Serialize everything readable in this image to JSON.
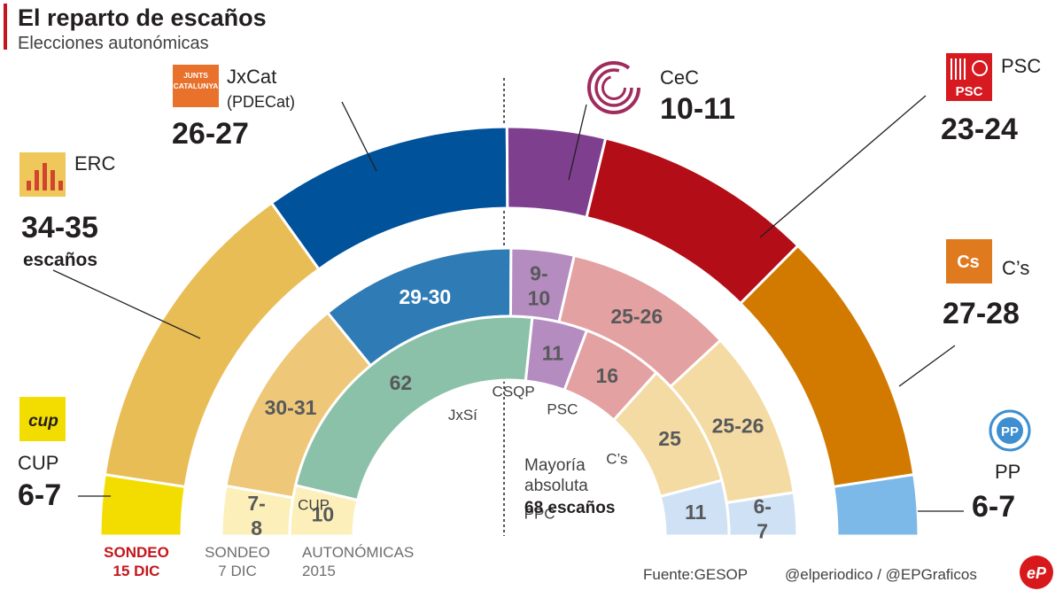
{
  "header": {
    "title": "El reparto de escaños",
    "subtitle": "Elecciones autonómicas",
    "accent_color": "#c4161c"
  },
  "chart_data": {
    "type": "semicircle",
    "title": "El reparto de escaños",
    "subtitle": "Elecciones autonómicas",
    "total_seats": 135,
    "majority_label": [
      "Mayoría",
      "absoluta",
      "68 escaños"
    ],
    "rings": [
      {
        "name": "SONDEO 15 DIC",
        "label_lines": [
          "SONDEO",
          "15 DIC"
        ],
        "label_color": "#c4161c",
        "segments": [
          {
            "party": "CUP",
            "label": "6-7",
            "value": 6.5,
            "color": "#f3dd00"
          },
          {
            "party": "ERC",
            "label": "34-35",
            "value": 34.5,
            "color": "#e9bd56"
          },
          {
            "party": "JxCat",
            "label": "26-27",
            "value": 26.5,
            "color": "#00529b"
          },
          {
            "party": "CeC",
            "label": "10-11",
            "value": 10.5,
            "color": "#7f3f8f"
          },
          {
            "party": "PSC",
            "label": "23-24",
            "value": 23.5,
            "color": "#b30d17"
          },
          {
            "party": "C's",
            "label": "27-28",
            "value": 27.5,
            "color": "#d27a00"
          },
          {
            "party": "PP",
            "label": "6-7",
            "value": 6.5,
            "color": "#7cb9e8"
          }
        ]
      },
      {
        "name": "SONDEO 7 DIC",
        "label_lines": [
          "SONDEO",
          "7 DIC"
        ],
        "label_color": "#6d6e71",
        "segments": [
          {
            "party": "CUP",
            "label": "7-8",
            "value": 7.5,
            "color": "#fcefb9",
            "text_color": "#58595b"
          },
          {
            "party": "ERC",
            "label": "30-31",
            "value": 30.5,
            "color": "#eec878",
            "text_color": "#58595b"
          },
          {
            "party": "JxCat",
            "label": "29-30",
            "value": 29.5,
            "color": "#2f7bb6",
            "text_color": "#ffffff"
          },
          {
            "party": "CeC",
            "label": "9-10",
            "value": 9.5,
            "color": "#b48cc0",
            "text_color": "#58595b"
          },
          {
            "party": "PSC",
            "label": "25-26",
            "value": 25.5,
            "color": "#e4a1a2",
            "text_color": "#58595b"
          },
          {
            "party": "C's",
            "label": "25-26",
            "value": 25.5,
            "color": "#f4dba4",
            "text_color": "#58595b"
          },
          {
            "party": "PP",
            "label": "6-7",
            "value": 6.5,
            "color": "#cfe2f5",
            "text_color": "#58595b"
          }
        ]
      },
      {
        "name": "AUTONÓMICAS 2015",
        "label_lines": [
          "AUTONÓMICAS",
          "2015"
        ],
        "label_color": "#6d6e71",
        "segments": [
          {
            "party": "CUP",
            "label": "10",
            "name_label": "CUP",
            "value": 10,
            "color": "#fcefb9",
            "text_color": "#58595b"
          },
          {
            "party": "JxSí",
            "label": "62",
            "name_label": "JxSí",
            "value": 62,
            "color": "#8bc1a9",
            "text_color": "#58595b"
          },
          {
            "party": "CSQP",
            "label": "11",
            "name_label": "CSQP",
            "value": 11,
            "color": "#b48cc0",
            "text_color": "#58595b"
          },
          {
            "party": "PSC",
            "label": "16",
            "name_label": "PSC",
            "value": 16,
            "color": "#e4a1a2",
            "text_color": "#58595b"
          },
          {
            "party": "C's",
            "label": "25",
            "name_label": "C’s",
            "value": 25,
            "color": "#f4dba4",
            "text_color": "#58595b"
          },
          {
            "party": "PPC",
            "label": "11",
            "name_label": "PPC",
            "value": 11,
            "color": "#cfe2f5",
            "text_color": "#58595b"
          }
        ]
      }
    ],
    "callouts": [
      {
        "party": "CUP",
        "name": "CUP",
        "seats": "6-7"
      },
      {
        "party": "ERC",
        "name": "ERC",
        "seats": "34-35",
        "unit": "escaños"
      },
      {
        "party": "JxCat",
        "name": "JxCat",
        "name2": "(PDECat)",
        "seats": "26-27",
        "logo_text": "JUNTS PER CATALUNYA"
      },
      {
        "party": "CeC",
        "name": "CeC",
        "seats": "10-11"
      },
      {
        "party": "PSC",
        "name": "PSC",
        "seats": "23-24",
        "logo_text": "PSC"
      },
      {
        "party": "C's",
        "name": "C’s",
        "seats": "27-28",
        "logo_text": "Cs"
      },
      {
        "party": "PP",
        "name": "PP",
        "seats": "6-7",
        "logo_text": "PP"
      }
    ],
    "cup_logo_text": "cup"
  },
  "footer": {
    "source": "Fuente:GESOP",
    "credit": "@elperiodico / @EPGraficos",
    "brand": "eP",
    "brand_color": "#d7191c"
  }
}
